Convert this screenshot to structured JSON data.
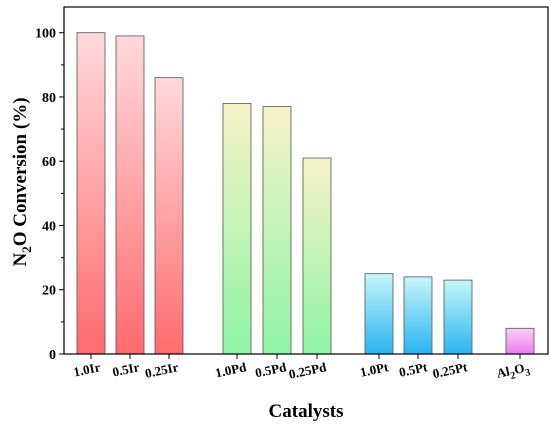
{
  "chart_data": {
    "type": "bar",
    "title": "",
    "xlabel": "Catalysts",
    "ylabel": {
      "pre": "N",
      "sub": "2",
      "post": "O Conversion (%)"
    },
    "ylim": [
      0,
      108
    ],
    "yticks": [
      0,
      20,
      40,
      60,
      80,
      100
    ],
    "grid": false,
    "legend": "none",
    "categories": [
      "1.0Ir",
      "0.5Ir",
      "0.25Ir",
      "1.0Pd",
      "0.5Pd",
      "0.25Pd",
      "1.0Pt",
      "0.5Pt",
      "0.25Pt",
      "Al2O3"
    ],
    "values": [
      100,
      99,
      86,
      78,
      77,
      61,
      25,
      24,
      23,
      8
    ],
    "groups": [
      {
        "categories": [
          "1.0Ir",
          "0.5Ir",
          "0.25Ir"
        ],
        "color_top": "#ffd9dc",
        "color_bottom": "#ff6b6e"
      },
      {
        "categories": [
          "1.0Pd",
          "0.5Pd",
          "0.25Pd"
        ],
        "color_top": "#f7f2c8",
        "color_bottom": "#8ef5a6"
      },
      {
        "categories": [
          "1.0Pt",
          "0.5Pt",
          "0.25Pt"
        ],
        "color_top": "#c5f6fb",
        "color_bottom": "#29b5f0"
      },
      {
        "categories": [
          "Al2O3"
        ],
        "color_top": "#f7d0f7",
        "color_bottom": "#ee7bee"
      }
    ],
    "al2o3_label": {
      "pre": "Al",
      "sub1": "2",
      "mid": "O",
      "sub2": "3"
    }
  }
}
